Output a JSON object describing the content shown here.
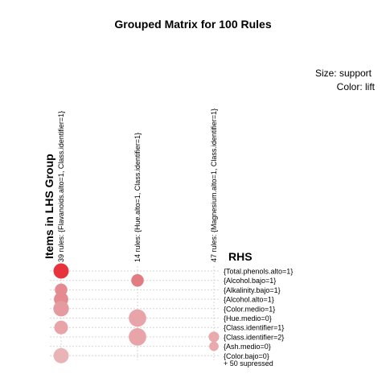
{
  "chart_data": {
    "type": "scatter",
    "title": "Grouped Matrix for 100 Rules",
    "legend": {
      "size": "Size: support",
      "color": "Color: lift"
    },
    "xlabel": "Items in LHS Group",
    "ylabel": "RHS",
    "columns": [
      "39 rules: {Flavanoids.alto=1, Class.identifier=1}",
      "14 rules: {Hue.alto=1, Class.identifier=1}",
      "47 rules: {Magnesium.alto=1, Class.identifier=1}"
    ],
    "rows": [
      "{Total.phenols.alto=1}",
      "{Alcohol.bajo=1}",
      "{Alkalinity.bajo=1}",
      "{Alcohol.alto=1}",
      "{Color.medio=1}",
      "{Hue.medio=0}",
      "{Class.identifier=1}",
      "{Class.identifier=2}",
      "{Ash.medio=0}",
      "{Color.bajo=0}"
    ],
    "footer": "+ 50 supressed",
    "points": [
      {
        "col": 0,
        "row": 0,
        "support": 0.62,
        "color": "#e8323c"
      },
      {
        "col": 0,
        "row": 2,
        "support": 0.42,
        "color": "#e48a90"
      },
      {
        "col": 0,
        "row": 3,
        "support": 0.55,
        "color": "#e48a90"
      },
      {
        "col": 0,
        "row": 4,
        "support": 0.65,
        "color": "#e59aa0"
      },
      {
        "col": 0,
        "row": 6,
        "support": 0.5,
        "color": "#e8a4a8"
      },
      {
        "col": 0,
        "row": 9,
        "support": 0.62,
        "color": "#eab4b6"
      },
      {
        "col": 1,
        "row": 1,
        "support": 0.42,
        "color": "#e27c83"
      },
      {
        "col": 1,
        "row": 5,
        "support": 0.82,
        "color": "#e8a4a8"
      },
      {
        "col": 1,
        "row": 7,
        "support": 0.82,
        "color": "#e8a4a8"
      },
      {
        "col": 2,
        "row": 7,
        "support": 0.3,
        "color": "#e9aaae"
      },
      {
        "col": 2,
        "row": 8,
        "support": 0.24,
        "color": "#e9aaae"
      }
    ]
  }
}
